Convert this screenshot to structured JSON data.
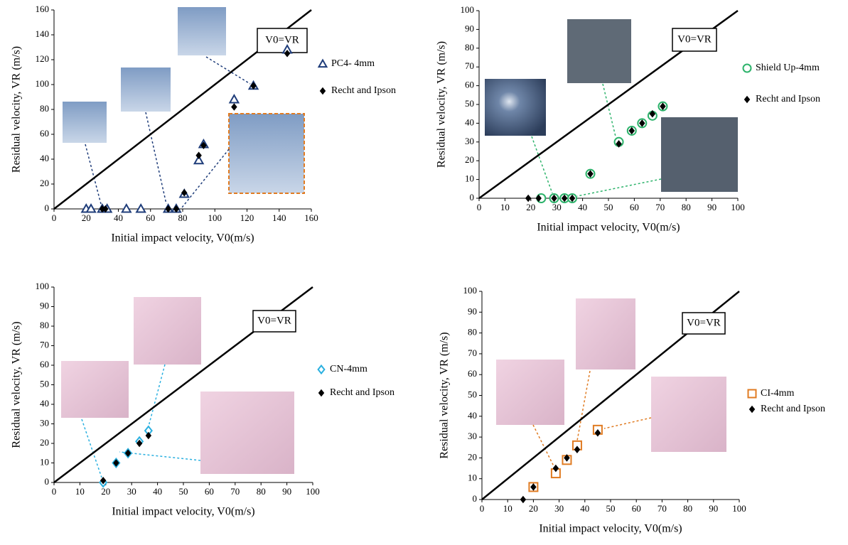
{
  "chart_data": [
    {
      "type": "scatter",
      "xlabel": "Initial impact velocity, V0(m/s)",
      "ylabel": "Residual velocity,  VR (m/s)",
      "annotation": "V0=VR",
      "xlim": [
        0,
        160
      ],
      "ylim": [
        0,
        160
      ],
      "xticks": [
        0,
        20,
        40,
        60,
        80,
        100,
        120,
        140,
        160
      ],
      "yticks": [
        0,
        20,
        40,
        60,
        80,
        100,
        120,
        140,
        160
      ],
      "series": [
        {
          "name": "PC4- 4mm",
          "color": "#1f3d7a",
          "marker": "triangle",
          "filled": false,
          "x": [
            20,
            23,
            30,
            33,
            45,
            54,
            71,
            76,
            81,
            90,
            93,
            112,
            124,
            145
          ],
          "values": [
            0,
            0,
            0,
            0,
            0,
            0,
            0,
            0,
            12,
            39,
            52,
            88,
            99,
            128
          ]
        },
        {
          "name": "Recht and Ipson",
          "color": "#000000",
          "marker": "diamond",
          "filled": true,
          "x": [
            30,
            32,
            71,
            76,
            81,
            90,
            93,
            112,
            124,
            145
          ],
          "values": [
            0,
            0,
            0,
            0,
            13,
            43,
            51,
            82,
            99,
            125
          ]
        }
      ]
    },
    {
      "type": "scatter",
      "xlabel": "Initial impact velocity, V0(m/s)",
      "ylabel": "Residual velocity,  VR (m/s)",
      "annotation": "V0=VR",
      "xlim": [
        0,
        100
      ],
      "ylim": [
        0,
        100
      ],
      "xticks": [
        0,
        10,
        20,
        30,
        40,
        50,
        60,
        70,
        80,
        90,
        100
      ],
      "yticks": [
        0,
        10,
        20,
        30,
        40,
        50,
        60,
        70,
        80,
        90,
        100
      ],
      "series": [
        {
          "name": "Shield Up-4mm",
          "color": "#2db36b",
          "marker": "circle",
          "filled": false,
          "x": [
            24,
            29,
            33,
            36,
            43,
            54,
            59,
            63,
            67,
            71
          ],
          "values": [
            0,
            0,
            0,
            0,
            13,
            30,
            36,
            40,
            44,
            49
          ]
        },
        {
          "name": "Recht and Ipson",
          "color": "#000000",
          "marker": "diamond",
          "filled": true,
          "x": [
            19,
            23,
            29,
            33,
            36,
            43,
            54,
            59,
            63,
            67,
            71
          ],
          "values": [
            0,
            0,
            0,
            0,
            0,
            13,
            29,
            36,
            40,
            45,
            49
          ]
        }
      ]
    },
    {
      "type": "scatter",
      "xlabel": "Initial impact velocity, V0(m/s)",
      "ylabel": "Residual velocity,  VR (m/s)",
      "annotation": "V0=VR",
      "xlim": [
        0,
        100
      ],
      "ylim": [
        0,
        100
      ],
      "xticks": [
        0,
        10,
        20,
        30,
        40,
        50,
        60,
        70,
        80,
        90,
        100
      ],
      "yticks": [
        0,
        10,
        20,
        30,
        40,
        50,
        60,
        70,
        80,
        90,
        100
      ],
      "series": [
        {
          "name": "CN-4mm",
          "color": "#2ab0e0",
          "marker": "diamond",
          "filled": false,
          "x": [
            19,
            24,
            28.6,
            33,
            36.5
          ],
          "values": [
            0,
            10,
            15,
            21,
            26.5
          ]
        },
        {
          "name": "Recht and Ipson",
          "color": "#000000",
          "marker": "diamond",
          "filled": true,
          "x": [
            19,
            24,
            28.6,
            33,
            36.5
          ],
          "values": [
            1,
            10,
            15,
            20,
            24
          ]
        }
      ]
    },
    {
      "type": "scatter",
      "xlabel": "Initial impact velocity, V0(m/s)",
      "ylabel": "Residual velocity,  VR (m/s)",
      "annotation": "V0=VR",
      "xlim": [
        0,
        100
      ],
      "ylim": [
        0,
        100
      ],
      "xticks": [
        0,
        10,
        20,
        30,
        40,
        50,
        60,
        70,
        80,
        90,
        100
      ],
      "yticks": [
        0,
        10,
        20,
        30,
        40,
        50,
        60,
        70,
        80,
        90,
        100
      ],
      "series": [
        {
          "name": "CI-4mm",
          "color": "#e07b22",
          "marker": "square",
          "filled": false,
          "x": [
            20,
            28.7,
            33,
            37,
            45
          ],
          "values": [
            6,
            12.6,
            19,
            26,
            33.5
          ]
        },
        {
          "name": "Recht and Ipson",
          "color": "#000000",
          "marker": "diamond",
          "filled": true,
          "x": [
            16,
            20,
            28.7,
            33,
            37,
            45
          ],
          "values": [
            0,
            6,
            15,
            20,
            24,
            32
          ]
        }
      ]
    }
  ]
}
